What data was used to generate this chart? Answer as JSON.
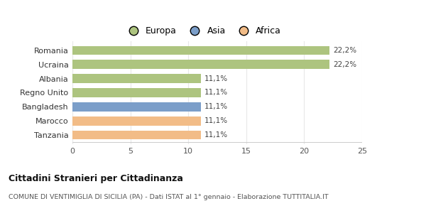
{
  "categories": [
    "Tanzania",
    "Marocco",
    "Bangladesh",
    "Regno Unito",
    "Albania",
    "Ucraina",
    "Romania"
  ],
  "values": [
    11.1,
    11.1,
    11.1,
    11.1,
    11.1,
    22.2,
    22.2
  ],
  "bar_colors": [
    "#f2bc87",
    "#f2bc87",
    "#7b9ec9",
    "#adc47f",
    "#adc47f",
    "#adc47f",
    "#adc47f"
  ],
  "labels": [
    "11,1%",
    "11,1%",
    "11,1%",
    "11,1%",
    "11,1%",
    "22,2%",
    "22,2%"
  ],
  "xlim": [
    0,
    25
  ],
  "xticks": [
    0,
    5,
    10,
    15,
    20,
    25
  ],
  "legend_items": [
    {
      "label": "Europa",
      "color": "#adc47f"
    },
    {
      "label": "Asia",
      "color": "#7b9ec9"
    },
    {
      "label": "Africa",
      "color": "#f2bc87"
    }
  ],
  "title": "Cittadini Stranieri per Cittadinanza",
  "subtitle": "COMUNE DI VENTIMIGLIA DI SICILIA (PA) - Dati ISTAT al 1° gennaio - Elaborazione TUTTITALIA.IT",
  "background_color": "#ffffff",
  "grid_color": "#e8e8e8",
  "bar_height": 0.65
}
